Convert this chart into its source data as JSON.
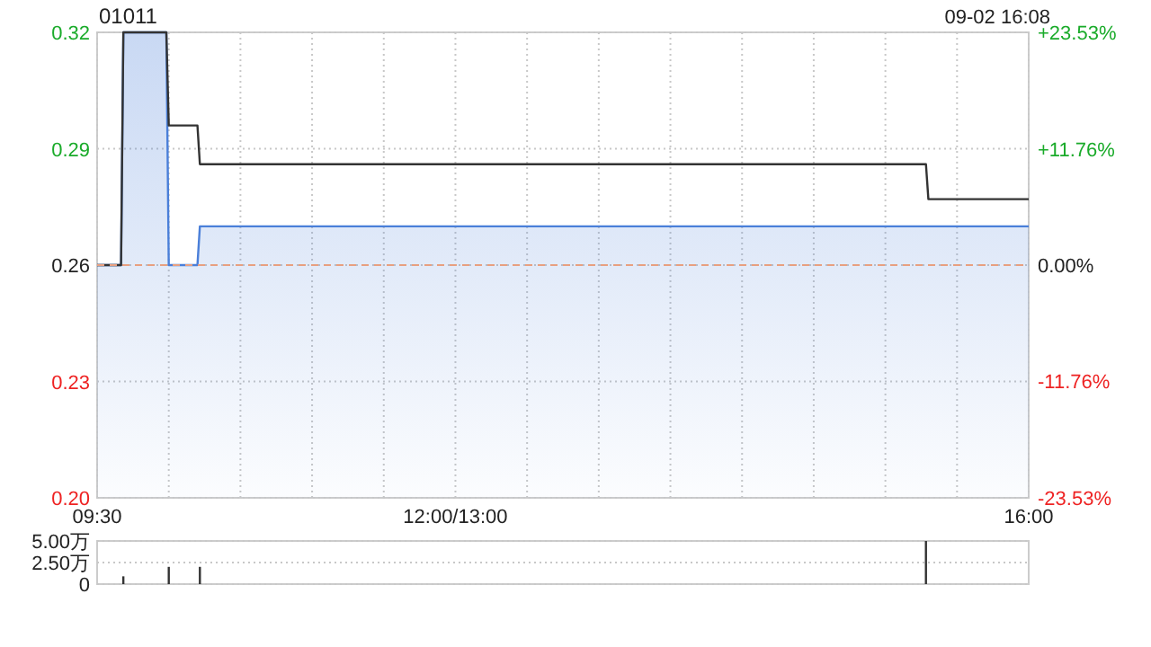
{
  "chart_data": [
    {
      "type": "line",
      "title": "01011",
      "annotations": [
        "09-02 16:08"
      ],
      "xlim": [
        9.5,
        16
      ],
      "xticks": [
        {
          "value": 9.5,
          "label": "09:30"
        },
        {
          "value": 10,
          "label": null
        },
        {
          "value": 10.5,
          "label": null
        },
        {
          "value": 11,
          "label": null
        },
        {
          "value": 11.5,
          "label": null
        },
        {
          "value": 12,
          "label": "12:00/13:00"
        },
        {
          "value": 12.5,
          "label": null
        },
        {
          "value": 13,
          "label": null
        },
        {
          "value": 13.5,
          "label": null
        },
        {
          "value": 14,
          "label": null
        },
        {
          "value": 14.5,
          "label": null
        },
        {
          "value": 15,
          "label": null
        },
        {
          "value": 15.5,
          "label": null
        },
        {
          "value": 16,
          "label": "16:00"
        }
      ],
      "ylim": [
        0.2,
        0.32
      ],
      "yticks": [
        {
          "value": 0.2,
          "label": "0.20"
        },
        0.23,
        {
          "value": 0.26,
          "label": "0.26"
        },
        0.29,
        0.32
      ],
      "y2lim": [
        -23.53,
        23.53
      ],
      "y2ticks": [
        {
          "value": -23.53,
          "label": "-23.53%"
        },
        {
          "value": -11.76,
          "label": "-11.76%"
        },
        {
          "value": 0,
          "label": "0.00%"
        },
        {
          "value": 11.76,
          "label": "+11.76%"
        },
        {
          "value": 23.53,
          "label": "+23.53%"
        }
      ],
      "grid": true,
      "marker": "none",
      "ref_lines": [
        {
          "axis": "y",
          "value": 0.26,
          "color": "#e8a080",
          "line_style": "dashed"
        }
      ],
      "series": [
        {
          "type": "area",
          "color": "#4a7fd9",
          "x": [
            9.5,
            9.667,
            9.683,
            9.983,
            10,
            10.2,
            10.217,
            16
          ],
          "values": [
            0.26,
            0.26,
            0.32,
            0.32,
            0.26,
            0.26,
            0.27,
            0.27
          ]
        },
        {
          "type": "line",
          "color": "#333333",
          "x": [
            9.5,
            9.667,
            9.683,
            9.983,
            10,
            10.2,
            10.217,
            15.283,
            15.3,
            16
          ],
          "values": [
            0.26,
            0.26,
            0.32,
            0.32,
            0.296,
            0.296,
            0.286,
            0.286,
            0.277,
            0.277
          ]
        }
      ]
    },
    {
      "type": "bar",
      "tick_labels": "y",
      "grid": "y",
      "xlim": [
        9.5,
        16
      ],
      "x": [
        9.683,
        10,
        10.217,
        15.283
      ],
      "values": [
        0.9,
        2.0,
        2.0,
        5
      ],
      "color": "#333333",
      "ylim": [
        0,
        5
      ],
      "yticks": [
        0,
        {
          "value": 2.5,
          "label": "2.50万"
        },
        {
          "value": 5,
          "label": "5.00万"
        }
      ]
    }
  ]
}
